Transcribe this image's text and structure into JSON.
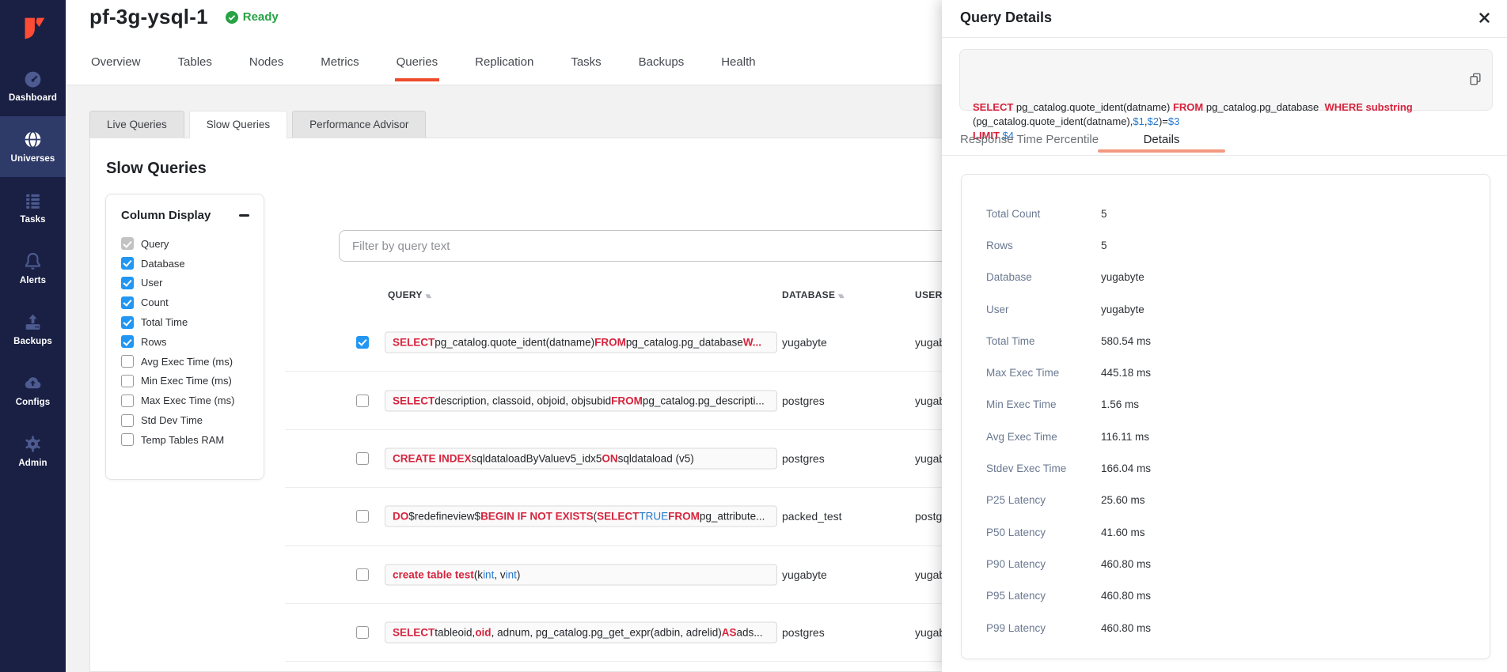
{
  "brand": {
    "accent_orange": "#ee4a2b",
    "logo_red": "#ff4c35",
    "sidebar_navy": "#1a2044",
    "status_green": "#27a244",
    "keyword_red": "#d6243e",
    "param_blue": "#2478cc",
    "checkbox_blue": "#2196f3"
  },
  "sidebar": {
    "items": [
      {
        "label": "Dashboard",
        "icon": "gauge-icon",
        "active": false
      },
      {
        "label": "Universes",
        "icon": "globe-icon",
        "active": true
      },
      {
        "label": "Tasks",
        "icon": "list-icon",
        "active": false
      },
      {
        "label": "Alerts",
        "icon": "bell-icon",
        "active": false
      },
      {
        "label": "Backups",
        "icon": "upload-icon",
        "active": false
      },
      {
        "label": "Configs",
        "icon": "cloud-icon",
        "active": false
      },
      {
        "label": "Admin",
        "icon": "gear-icon",
        "active": false
      }
    ]
  },
  "header": {
    "title": "pf-3g-ysql-1",
    "status": "Ready",
    "tabs": [
      {
        "label": "Overview",
        "active": false
      },
      {
        "label": "Tables",
        "active": false
      },
      {
        "label": "Nodes",
        "active": false
      },
      {
        "label": "Metrics",
        "active": false
      },
      {
        "label": "Queries",
        "active": true
      },
      {
        "label": "Replication",
        "active": false
      },
      {
        "label": "Tasks",
        "active": false
      },
      {
        "label": "Backups",
        "active": false
      },
      {
        "label": "Health",
        "active": false
      }
    ]
  },
  "subtabs": [
    {
      "label": "Live Queries",
      "active": false
    },
    {
      "label": "Slow Queries",
      "active": true
    },
    {
      "label": "Performance Advisor",
      "active": false
    }
  ],
  "main": {
    "heading": "Slow Queries",
    "column_display": {
      "title": "Column Display",
      "options": [
        {
          "label": "Query",
          "state": "checked-disabled"
        },
        {
          "label": "Database",
          "state": "checked"
        },
        {
          "label": "User",
          "state": "checked"
        },
        {
          "label": "Count",
          "state": "checked"
        },
        {
          "label": "Total Time",
          "state": "checked"
        },
        {
          "label": "Rows",
          "state": "checked"
        },
        {
          "label": "Avg Exec Time (ms)",
          "state": "unchecked"
        },
        {
          "label": "Min Exec Time (ms)",
          "state": "unchecked"
        },
        {
          "label": "Max Exec Time (ms)",
          "state": "unchecked"
        },
        {
          "label": "Std Dev Time",
          "state": "unchecked"
        },
        {
          "label": "Temp Tables RAM",
          "state": "unchecked"
        }
      ]
    },
    "filter_placeholder": "Filter by query text",
    "table": {
      "columns": [
        "QUERY",
        "DATABASE",
        "USER"
      ],
      "rows": [
        {
          "checked": true,
          "database": "yugabyte",
          "user": "yugabyte",
          "query": [
            {
              "t": "SELECT",
              "c": "kw"
            },
            {
              "t": " pg_catalog.quote_ident(datname) ",
              "c": "p"
            },
            {
              "t": "FROM",
              "c": "kw"
            },
            {
              "t": " pg_catalog.pg_database ",
              "c": "p"
            },
            {
              "t": "W...",
              "c": "kw"
            }
          ]
        },
        {
          "checked": false,
          "database": "postgres",
          "user": "yugabyte",
          "query": [
            {
              "t": "SELECT",
              "c": "kw"
            },
            {
              "t": " description, classoid, objoid, objsubid ",
              "c": "p"
            },
            {
              "t": "FROM",
              "c": "kw"
            },
            {
              "t": " pg_catalog.pg_descripti...",
              "c": "p"
            }
          ]
        },
        {
          "checked": false,
          "database": "postgres",
          "user": "yugabyte",
          "query": [
            {
              "t": "CREATE INDEX",
              "c": "kw"
            },
            {
              "t": " sqldataloadByValuev5_idx5 ",
              "c": "p"
            },
            {
              "t": "ON",
              "c": "kw"
            },
            {
              "t": " sqldataload (v5)",
              "c": "p"
            }
          ]
        },
        {
          "checked": false,
          "database": "packed_test",
          "user": "postgres",
          "query": [
            {
              "t": "DO",
              "c": "kw"
            },
            {
              "t": " $redefineview$ ",
              "c": "p"
            },
            {
              "t": "BEGIN IF NOT EXISTS",
              "c": "kw"
            },
            {
              "t": " (",
              "c": "p"
            },
            {
              "t": "SELECT",
              "c": "kw"
            },
            {
              "t": " ",
              "c": "p"
            },
            {
              "t": "TRUE",
              "c": "b"
            },
            {
              "t": " ",
              "c": "p"
            },
            {
              "t": "FROM",
              "c": "kw"
            },
            {
              "t": " pg_attribute...",
              "c": "p"
            }
          ]
        },
        {
          "checked": false,
          "database": "yugabyte",
          "user": "yugabyte",
          "query": [
            {
              "t": "create table test",
              "c": "kw"
            },
            {
              "t": "(k ",
              "c": "p"
            },
            {
              "t": "int",
              "c": "b"
            },
            {
              "t": ", v ",
              "c": "p"
            },
            {
              "t": "int",
              "c": "b"
            },
            {
              "t": ")",
              "c": "p"
            }
          ]
        },
        {
          "checked": false,
          "database": "postgres",
          "user": "yugabyte",
          "query": [
            {
              "t": "SELECT",
              "c": "kw"
            },
            {
              "t": " tableoid, ",
              "c": "p"
            },
            {
              "t": "oid",
              "c": "kw"
            },
            {
              "t": ", adnum, pg_catalog.pg_get_expr(adbin, adrelid) ",
              "c": "p"
            },
            {
              "t": "AS",
              "c": "kw"
            },
            {
              "t": " ads...",
              "c": "p"
            }
          ]
        }
      ]
    }
  },
  "panel": {
    "title": "Query Details",
    "sql_lines": [
      [
        {
          "t": "SELECT",
          "c": "kw"
        },
        {
          "t": " pg_catalog.quote_ident(datname) ",
          "c": "p"
        },
        {
          "t": "FROM",
          "c": "kw"
        },
        {
          "t": " pg_catalog.pg_database  ",
          "c": "p"
        },
        {
          "t": "WHERE substring",
          "c": "kw"
        }
      ],
      [
        {
          "t": "(pg_catalog.quote_ident(datname),",
          "c": "p"
        },
        {
          "t": "$1",
          "c": "b"
        },
        {
          "t": ",",
          "c": "p"
        },
        {
          "t": "$2",
          "c": "b"
        },
        {
          "t": ")=",
          "c": "p"
        },
        {
          "t": "$3",
          "c": "b"
        }
      ],
      [
        {
          "t": "LIMIT",
          "c": "kw"
        },
        {
          "t": " ",
          "c": "p"
        },
        {
          "t": "$4",
          "c": "b"
        }
      ]
    ],
    "tabs": [
      {
        "label": "Response Time Percentile",
        "active": false
      },
      {
        "label": "Details",
        "active": true
      }
    ],
    "details": [
      {
        "label": "Total Count",
        "value": "5"
      },
      {
        "label": "Rows",
        "value": "5"
      },
      {
        "label": "Database",
        "value": "yugabyte"
      },
      {
        "label": "User",
        "value": "yugabyte"
      },
      {
        "label": "Total Time",
        "value": "580.54 ms"
      },
      {
        "label": "Max Exec Time",
        "value": "445.18 ms"
      },
      {
        "label": "Min Exec Time",
        "value": "1.56 ms"
      },
      {
        "label": "Avg Exec Time",
        "value": "116.11 ms"
      },
      {
        "label": "Stdev Exec Time",
        "value": "166.04 ms"
      },
      {
        "label": "P25 Latency",
        "value": "25.60 ms"
      },
      {
        "label": "P50 Latency",
        "value": "41.60 ms"
      },
      {
        "label": "P90 Latency",
        "value": "460.80 ms"
      },
      {
        "label": "P95 Latency",
        "value": "460.80 ms"
      },
      {
        "label": "P99 Latency",
        "value": "460.80 ms"
      }
    ]
  }
}
